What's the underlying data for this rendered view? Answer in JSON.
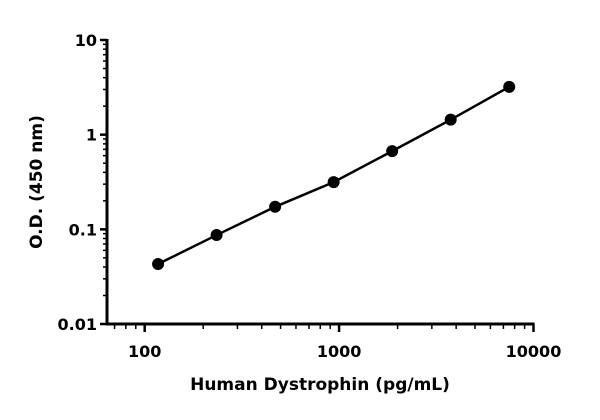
{
  "chart_data": {
    "type": "line",
    "xlabel": "Human Dystrophin (pg/mL)",
    "ylabel": "O.D. (450 nm)",
    "xscale": "log",
    "yscale": "log",
    "xlim": [
      64,
      10000
    ],
    "ylim": [
      0.01,
      10
    ],
    "xticks": [
      100,
      1000,
      10000
    ],
    "xtick_labels": [
      "100",
      "1000",
      "10000"
    ],
    "yticks": [
      0.01,
      0.1,
      1,
      10
    ],
    "ytick_labels": [
      "0.01",
      "0.1",
      "1",
      "10"
    ],
    "grid": false,
    "series": [
      {
        "x": [
          117.2,
          234.4,
          468.8,
          937.5,
          1875,
          3750,
          7500
        ],
        "y": [
          0.043,
          0.087,
          0.173,
          0.315,
          0.67,
          1.44,
          3.2
        ],
        "color": "#000000",
        "marker": "circle"
      }
    ]
  }
}
